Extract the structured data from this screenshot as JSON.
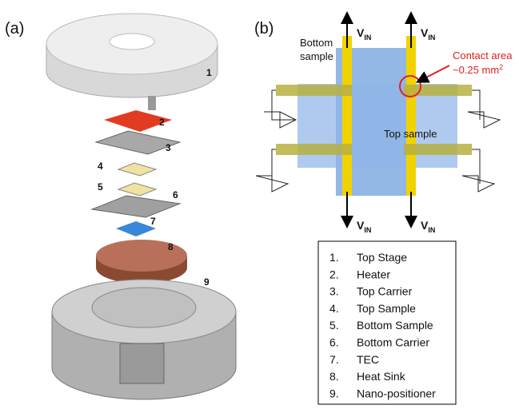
{
  "panel_a": {
    "label": "(a)",
    "parts": [
      "1",
      "2",
      "3",
      "4",
      "5",
      "6",
      "7",
      "8",
      "9"
    ]
  },
  "panel_b": {
    "label": "(b)",
    "v_in": {
      "main": "V",
      "sub": "IN"
    },
    "bottom_sample": [
      "Bottom",
      "sample"
    ],
    "top_sample": "Top sample",
    "contact_area": {
      "title": "Contact area",
      "value": "~0.25 mm",
      "sup": "2"
    }
  },
  "legend": {
    "items": [
      {
        "number": "1.",
        "name": "Top Stage"
      },
      {
        "number": "2.",
        "name": "Heater"
      },
      {
        "number": "3.",
        "name": "Top Carrier"
      },
      {
        "number": "4.",
        "name": "Top Sample"
      },
      {
        "number": "5.",
        "name": "Bottom Sample"
      },
      {
        "number": "6.",
        "name": "Bottom Carrier"
      },
      {
        "number": "7.",
        "name": "TEC"
      },
      {
        "number": "8.",
        "name": "Heat Sink"
      },
      {
        "number": "9.",
        "name": "Nano-positioner"
      }
    ]
  }
}
